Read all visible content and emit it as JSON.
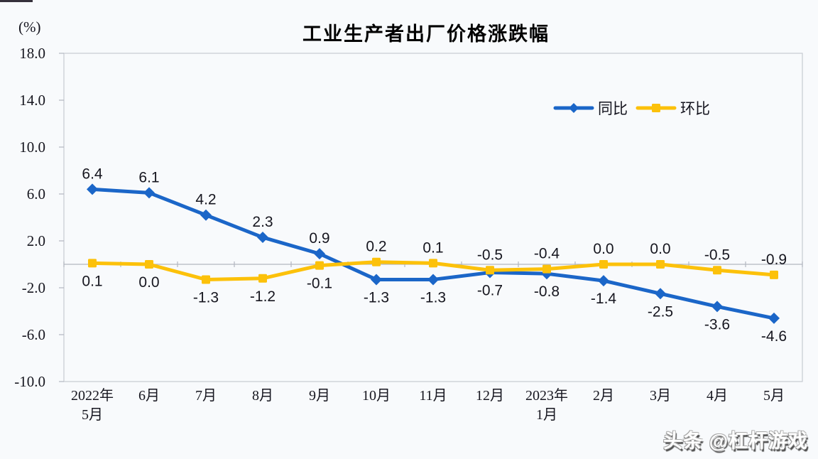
{
  "header": {
    "unit_label": "(%)"
  },
  "watermark": {
    "text": "头条 @杠杆游戏"
  },
  "colors": {
    "yoy_blue": "#1b66c8",
    "mom_yellow": "#fcc10a",
    "plot_border": "#c6cad2",
    "axis_line": "#b2b6c0",
    "label_text": "#16161f"
  },
  "chart_data": {
    "type": "line",
    "title": "工业生产者出厂价格涨跌幅",
    "xlabel": "",
    "ylabel": "(%)",
    "ylim": [
      -10,
      18
    ],
    "ytick_step": 4,
    "yticks": [
      18.0,
      14.0,
      10.0,
      6.0,
      2.0,
      -2.0,
      -6.0,
      -10.0
    ],
    "grid": false,
    "legend_position": "top-right",
    "categories": [
      [
        "2022年",
        "5月"
      ],
      [
        "6月"
      ],
      [
        "7月"
      ],
      [
        "8月"
      ],
      [
        "9月"
      ],
      [
        "10月"
      ],
      [
        "11月"
      ],
      [
        "12月"
      ],
      [
        "2023年",
        "1月"
      ],
      [
        "2月"
      ],
      [
        "3月"
      ],
      [
        "4月"
      ],
      [
        "5月"
      ]
    ],
    "series": [
      {
        "name": "同比",
        "color": "#1b66c8",
        "marker": "diamond",
        "values": [
          6.4,
          6.1,
          4.2,
          2.3,
          0.9,
          -1.3,
          -1.3,
          -0.7,
          -0.8,
          -1.4,
          -2.5,
          -3.6,
          -4.6
        ],
        "label_side": [
          "above",
          "above",
          "above",
          "above",
          "above",
          "below",
          "below",
          "below",
          "below",
          "below",
          "below",
          "below",
          "below"
        ]
      },
      {
        "name": "环比",
        "color": "#fcc10a",
        "marker": "square",
        "values": [
          0.1,
          0.0,
          -1.3,
          -1.2,
          -0.1,
          0.2,
          0.1,
          -0.5,
          -0.4,
          0.0,
          0.0,
          -0.5,
          -0.9
        ],
        "label_side": [
          "below",
          "below",
          "below",
          "below",
          "below",
          "above",
          "above",
          "above",
          "above",
          "above",
          "above",
          "above",
          "above"
        ]
      }
    ]
  }
}
